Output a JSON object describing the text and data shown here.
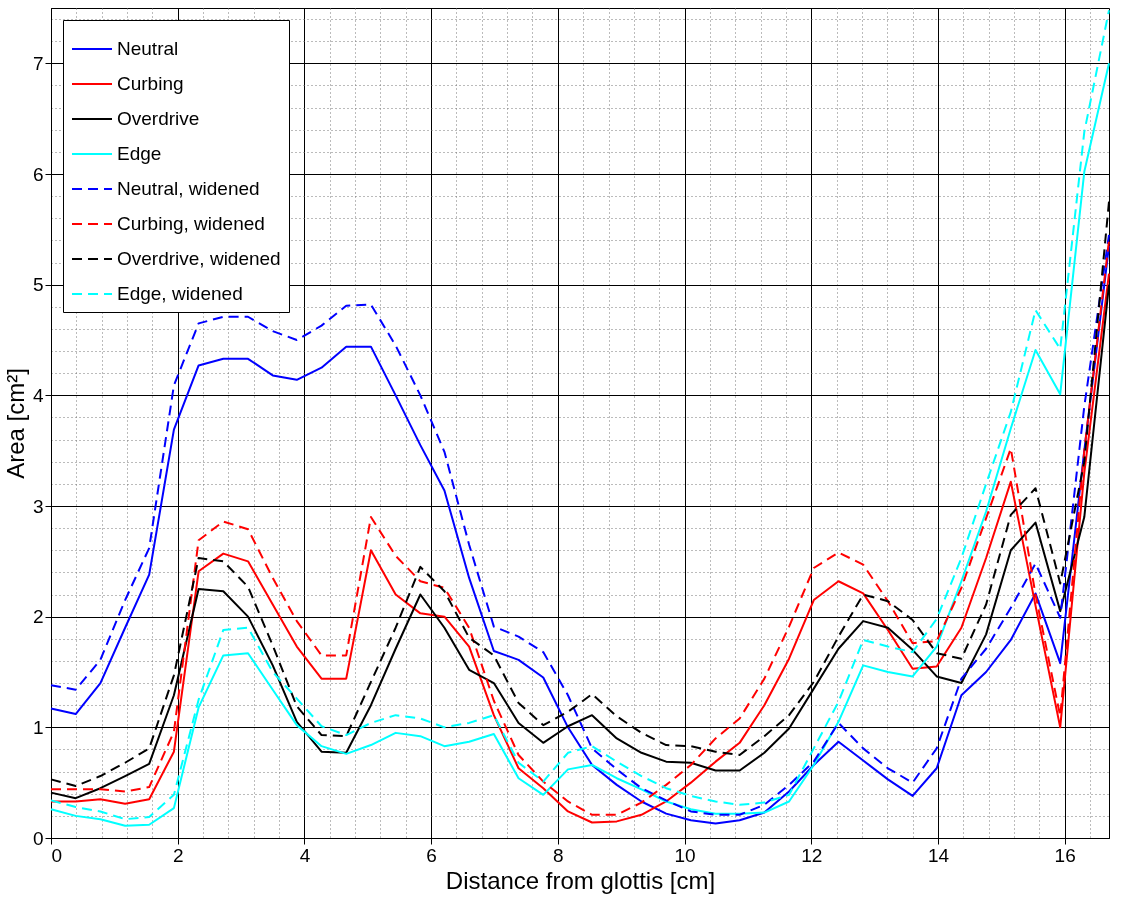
{
  "chart_data": {
    "type": "line",
    "xlabel": "Distance from glottis [cm]",
    "ylabel": "Area [cm²]",
    "x": [
      0,
      0.39,
      0.78,
      1.17,
      1.55,
      1.94,
      2.33,
      2.72,
      3.11,
      3.5,
      3.88,
      4.27,
      4.66,
      5.05,
      5.44,
      5.83,
      6.21,
      6.6,
      6.99,
      7.38,
      7.77,
      8.16,
      8.54,
      8.93,
      9.32,
      9.71,
      10.1,
      10.49,
      10.87,
      11.26,
      11.65,
      12.04,
      12.43,
      12.82,
      13.21,
      13.6,
      13.98,
      14.37,
      14.76,
      15.15,
      15.54,
      15.93,
      16.31,
      16.7
    ],
    "xlim": [
      0,
      16.7
    ],
    "ylim": [
      0,
      7.5
    ],
    "xticks": [
      0,
      {
        "value": 0.4,
        "label": null
      },
      {
        "value": 0.8,
        "label": null
      },
      {
        "value": 1.2,
        "label": null
      },
      {
        "value": 1.6,
        "label": null
      },
      2,
      {
        "value": 2.4,
        "label": null
      },
      {
        "value": 2.8,
        "label": null
      },
      {
        "value": 3.2,
        "label": null
      },
      {
        "value": 3.6,
        "label": null
      },
      4,
      {
        "value": 4.4,
        "label": null
      },
      {
        "value": 4.8,
        "label": null
      },
      {
        "value": 5.2,
        "label": null
      },
      {
        "value": 5.6,
        "label": null
      },
      6,
      {
        "value": 6.4,
        "label": null
      },
      {
        "value": 6.8,
        "label": null
      },
      {
        "value": 7.2,
        "label": null
      },
      {
        "value": 7.6,
        "label": null
      },
      8,
      {
        "value": 8.4,
        "label": null
      },
      {
        "value": 8.8,
        "label": null
      },
      {
        "value": 9.2,
        "label": null
      },
      {
        "value": 9.6,
        "label": null
      },
      10,
      {
        "value": 10.4,
        "label": null
      },
      {
        "value": 10.8,
        "label": null
      },
      {
        "value": 11.2,
        "label": null
      },
      {
        "value": 11.6,
        "label": null
      },
      12,
      {
        "value": 12.4,
        "label": null
      },
      {
        "value": 12.8,
        "label": null
      },
      {
        "value": 13.2,
        "label": null
      },
      {
        "value": 13.6,
        "label": null
      },
      14,
      {
        "value": 14.4,
        "label": null
      },
      {
        "value": 14.8,
        "label": null
      },
      {
        "value": 15.2,
        "label": null
      },
      {
        "value": 15.6,
        "label": null
      },
      16,
      {
        "value": 16.4,
        "label": null
      }
    ],
    "yticks": [
      0,
      {
        "value": 0.2,
        "label": null
      },
      {
        "value": 0.4,
        "label": null
      },
      {
        "value": 0.6,
        "label": null
      },
      {
        "value": 0.8,
        "label": null
      },
      1,
      {
        "value": 1.2,
        "label": null
      },
      {
        "value": 1.4,
        "label": null
      },
      {
        "value": 1.6,
        "label": null
      },
      {
        "value": 1.8,
        "label": null
      },
      2,
      {
        "value": 2.2,
        "label": null
      },
      {
        "value": 2.4,
        "label": null
      },
      {
        "value": 2.6,
        "label": null
      },
      {
        "value": 2.8,
        "label": null
      },
      3,
      {
        "value": 3.2,
        "label": null
      },
      {
        "value": 3.4,
        "label": null
      },
      {
        "value": 3.6,
        "label": null
      },
      {
        "value": 3.8,
        "label": null
      },
      4,
      {
        "value": 4.2,
        "label": null
      },
      {
        "value": 4.4,
        "label": null
      },
      {
        "value": 4.6,
        "label": null
      },
      {
        "value": 4.8,
        "label": null
      },
      5,
      {
        "value": 5.2,
        "label": null
      },
      {
        "value": 5.4,
        "label": null
      },
      {
        "value": 5.6,
        "label": null
      },
      {
        "value": 5.8,
        "label": null
      },
      6,
      {
        "value": 6.2,
        "label": null
      },
      {
        "value": 6.4,
        "label": null
      },
      {
        "value": 6.6,
        "label": null
      },
      {
        "value": 6.8,
        "label": null
      },
      7,
      {
        "value": 7.2,
        "label": null
      },
      {
        "value": 7.4,
        "label": null
      }
    ],
    "grid": true,
    "legend": "top left",
    "series": [
      {
        "name": "Neutral",
        "color": "#0000ff",
        "line_style": "solid",
        "values": [
          1.17,
          1.12,
          1.4,
          1.9,
          2.38,
          3.69,
          4.27,
          4.33,
          4.33,
          4.18,
          4.14,
          4.25,
          4.44,
          4.44,
          4.0,
          3.55,
          3.14,
          2.35,
          1.69,
          1.61,
          1.45,
          1.0,
          0.66,
          0.48,
          0.33,
          0.22,
          0.16,
          0.13,
          0.16,
          0.23,
          0.42,
          0.66,
          0.87,
          0.7,
          0.53,
          0.38,
          0.63,
          1.29,
          1.5,
          1.79,
          2.21,
          1.58,
          3.5,
          5.35
        ]
      },
      {
        "name": "Curbing",
        "color": "#ff0000",
        "line_style": "solid",
        "values": [
          0.33,
          0.33,
          0.35,
          0.31,
          0.35,
          0.78,
          2.41,
          2.57,
          2.5,
          2.11,
          1.73,
          1.44,
          1.44,
          2.6,
          2.2,
          2.03,
          2.0,
          1.73,
          1.11,
          0.63,
          0.45,
          0.24,
          0.14,
          0.15,
          0.21,
          0.33,
          0.5,
          0.69,
          0.86,
          1.2,
          1.62,
          2.15,
          2.32,
          2.21,
          1.88,
          1.53,
          1.55,
          1.9,
          2.53,
          3.22,
          2.1,
          1.0,
          3.3,
          5.1
        ]
      },
      {
        "name": "Overdrive",
        "color": "#000000",
        "line_style": "solid",
        "values": [
          0.41,
          0.36,
          0.45,
          0.56,
          0.67,
          1.29,
          2.25,
          2.23,
          2.0,
          1.56,
          1.05,
          0.78,
          0.77,
          1.2,
          1.71,
          2.2,
          1.9,
          1.52,
          1.4,
          1.04,
          0.86,
          1.01,
          1.11,
          0.9,
          0.77,
          0.69,
          0.68,
          0.61,
          0.61,
          0.77,
          0.99,
          1.35,
          1.71,
          1.96,
          1.9,
          1.7,
          1.46,
          1.4,
          1.84,
          2.6,
          2.85,
          2.05,
          2.9,
          5.0
        ]
      },
      {
        "name": "Edge",
        "color": "#00ffff",
        "line_style": "solid",
        "values": [
          0.26,
          0.2,
          0.17,
          0.11,
          0.12,
          0.27,
          1.18,
          1.65,
          1.67,
          1.34,
          1.02,
          0.83,
          0.76,
          0.84,
          0.95,
          0.92,
          0.83,
          0.87,
          0.94,
          0.54,
          0.39,
          0.62,
          0.66,
          0.54,
          0.44,
          0.33,
          0.26,
          0.22,
          0.22,
          0.23,
          0.33,
          0.66,
          1.05,
          1.56,
          1.5,
          1.46,
          1.73,
          2.32,
          2.95,
          3.7,
          4.41,
          4.01,
          6.02,
          7.0
        ]
      },
      {
        "name": "Neutral, widened",
        "color": "#0000ff",
        "line_style": "dashed",
        "values": [
          1.38,
          1.34,
          1.61,
          2.15,
          2.62,
          4.09,
          4.65,
          4.71,
          4.71,
          4.58,
          4.5,
          4.63,
          4.81,
          4.82,
          4.45,
          4.0,
          3.49,
          2.65,
          1.91,
          1.82,
          1.68,
          1.29,
          0.81,
          0.62,
          0.45,
          0.34,
          0.24,
          0.21,
          0.21,
          0.3,
          0.48,
          0.69,
          1.04,
          0.81,
          0.63,
          0.5,
          0.81,
          1.44,
          1.71,
          2.08,
          2.48,
          1.99,
          3.9,
          5.45
        ]
      },
      {
        "name": "Curbing, widened",
        "color": "#ff0000",
        "line_style": "dashed",
        "values": [
          0.44,
          0.44,
          0.44,
          0.42,
          0.46,
          0.96,
          2.69,
          2.86,
          2.79,
          2.35,
          1.96,
          1.65,
          1.65,
          2.9,
          2.55,
          2.32,
          2.26,
          1.9,
          1.24,
          0.75,
          0.51,
          0.33,
          0.21,
          0.21,
          0.32,
          0.48,
          0.66,
          0.9,
          1.08,
          1.44,
          1.91,
          2.44,
          2.58,
          2.47,
          2.14,
          1.76,
          1.78,
          2.26,
          2.89,
          3.52,
          2.2,
          1.1,
          3.5,
          5.4
        ]
      },
      {
        "name": "Overdrive, widened",
        "color": "#000000",
        "line_style": "dashed",
        "values": [
          0.53,
          0.47,
          0.56,
          0.68,
          0.81,
          1.47,
          2.53,
          2.5,
          2.27,
          1.74,
          1.19,
          0.93,
          0.92,
          1.41,
          1.9,
          2.45,
          2.23,
          1.81,
          1.65,
          1.22,
          1.02,
          1.14,
          1.3,
          1.1,
          0.95,
          0.84,
          0.83,
          0.78,
          0.75,
          0.92,
          1.11,
          1.41,
          1.82,
          2.2,
          2.14,
          1.97,
          1.67,
          1.62,
          2.11,
          2.92,
          3.16,
          2.3,
          3.4,
          5.75
        ]
      },
      {
        "name": "Edge, widened",
        "color": "#00ffff",
        "line_style": "dashed",
        "values": [
          0.34,
          0.28,
          0.24,
          0.17,
          0.19,
          0.39,
          1.25,
          1.88,
          1.9,
          1.5,
          1.26,
          1.01,
          0.93,
          1.04,
          1.11,
          1.08,
          1.0,
          1.04,
          1.11,
          0.68,
          0.51,
          0.77,
          0.83,
          0.69,
          0.56,
          0.45,
          0.38,
          0.33,
          0.3,
          0.32,
          0.39,
          0.81,
          1.23,
          1.79,
          1.73,
          1.68,
          1.98,
          2.53,
          3.2,
          3.85,
          4.77,
          4.42,
          6.38,
          7.48
        ]
      }
    ]
  }
}
